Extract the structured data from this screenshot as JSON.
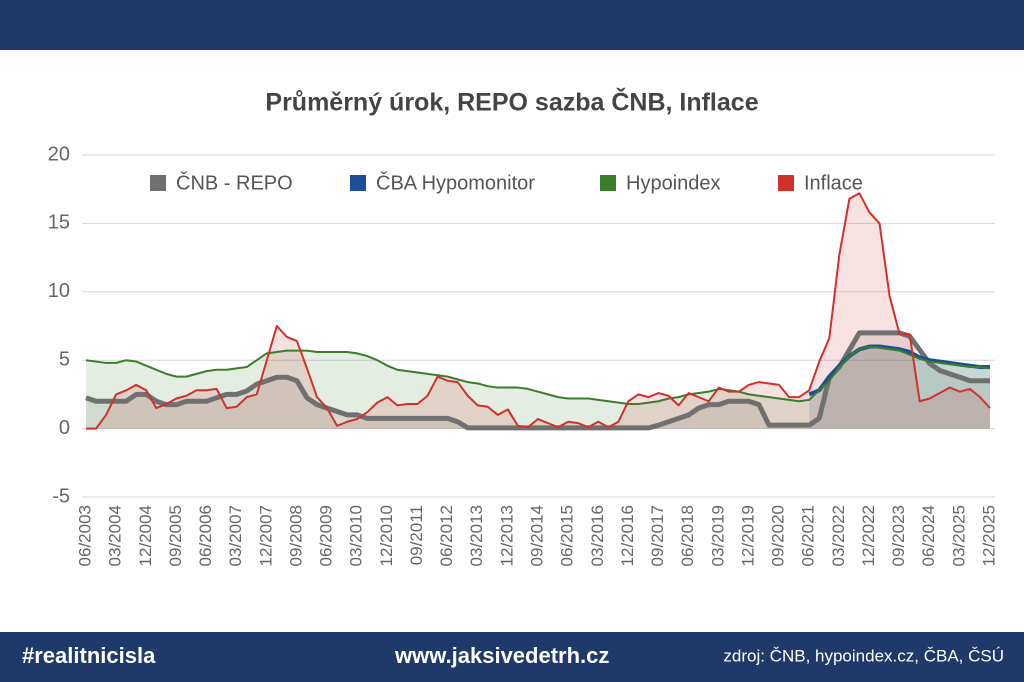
{
  "chart_data": {
    "type": "line",
    "title": "Průměrný úrok, REPO sazba ČNB, Inflace",
    "categories": [
      "06/2003",
      null,
      null,
      "03/2004",
      null,
      null,
      "12/2004",
      null,
      null,
      "09/2005",
      null,
      null,
      "06/2006",
      null,
      null,
      "03/2007",
      null,
      null,
      "12/2007",
      null,
      null,
      "09/2008",
      null,
      null,
      "06/2009",
      null,
      null,
      "03/2010",
      null,
      null,
      "12/2010",
      null,
      null,
      "09/2011",
      null,
      null,
      "06/2012",
      null,
      null,
      "03/2013",
      null,
      null,
      "12/2013",
      null,
      null,
      "09/2014",
      null,
      null,
      "06/2015",
      null,
      null,
      "03/2016",
      null,
      null,
      "12/2016",
      null,
      null,
      "09/2017",
      null,
      null,
      "06/2018",
      null,
      null,
      "03/2019",
      null,
      null,
      "12/2019",
      null,
      null,
      "09/2020",
      null,
      null,
      "06/2021",
      null,
      null,
      "03/2022",
      null,
      null,
      "12/2022",
      null,
      null,
      "09/2023",
      null,
      null,
      "06/2024",
      null,
      null,
      "03/2025",
      null,
      null,
      "12/2025"
    ],
    "series": [
      {
        "name": "ČNB - REPO",
        "color": "#707070",
        "values": [
          2.25,
          2,
          2,
          2,
          2,
          2.5,
          2.5,
          2,
          1.75,
          1.75,
          2,
          2,
          2,
          2.25,
          2.5,
          2.5,
          2.75,
          3.25,
          3.5,
          3.75,
          3.75,
          3.5,
          2.25,
          1.75,
          1.5,
          1.25,
          1,
          1,
          0.75,
          0.75,
          0.75,
          0.75,
          0.75,
          0.75,
          0.75,
          0.75,
          0.75,
          0.5,
          0.05,
          0.05,
          0.05,
          0.05,
          0.05,
          0.05,
          0.05,
          0.05,
          0.05,
          0.05,
          0.05,
          0.05,
          0.05,
          0.05,
          0.05,
          0.05,
          0.05,
          0.05,
          0.05,
          0.25,
          0.5,
          0.75,
          1,
          1.5,
          1.75,
          1.75,
          2,
          2,
          2,
          1.75,
          0.25,
          0.25,
          0.25,
          0.25,
          0.25,
          0.75,
          3.75,
          4.5,
          5.75,
          7,
          7,
          7,
          7,
          7,
          6.75,
          5.75,
          4.75,
          4.25,
          4,
          3.75,
          3.5,
          3.5,
          3.5
        ]
      },
      {
        "name": "ČBA Hypomonitor",
        "color": "#1f4e96",
        "values": [
          null,
          null,
          null,
          null,
          null,
          null,
          null,
          null,
          null,
          null,
          null,
          null,
          null,
          null,
          null,
          null,
          null,
          null,
          null,
          null,
          null,
          null,
          null,
          null,
          null,
          null,
          null,
          null,
          null,
          null,
          null,
          null,
          null,
          null,
          null,
          null,
          null,
          null,
          null,
          null,
          null,
          null,
          null,
          null,
          null,
          null,
          null,
          null,
          null,
          null,
          null,
          null,
          null,
          null,
          null,
          null,
          null,
          null,
          null,
          null,
          null,
          null,
          null,
          null,
          null,
          null,
          null,
          null,
          null,
          null,
          null,
          null,
          2.5,
          2.8,
          3.8,
          4.6,
          5.3,
          5.8,
          6.0,
          6.0,
          5.9,
          5.8,
          5.6,
          5.2,
          5.0,
          4.9,
          4.8,
          4.7,
          4.6,
          4.5,
          4.5
        ]
      },
      {
        "name": "Hypoindex",
        "color": "#3a7d2c",
        "values": [
          5.0,
          4.9,
          4.8,
          4.8,
          5.0,
          4.9,
          4.6,
          4.3,
          4.0,
          3.8,
          3.8,
          4.0,
          4.2,
          4.3,
          4.3,
          4.4,
          4.5,
          5.0,
          5.5,
          5.6,
          5.7,
          5.7,
          5.7,
          5.6,
          5.6,
          5.6,
          5.6,
          5.5,
          5.3,
          5.0,
          4.6,
          4.3,
          4.2,
          4.1,
          4.0,
          3.9,
          3.8,
          3.6,
          3.4,
          3.3,
          3.1,
          3.0,
          3.0,
          3.0,
          2.9,
          2.7,
          2.5,
          2.3,
          2.2,
          2.2,
          2.2,
          2.1,
          2.0,
          1.9,
          1.8,
          1.8,
          1.9,
          2.0,
          2.2,
          2.3,
          2.5,
          2.6,
          2.7,
          2.9,
          2.8,
          2.7,
          2.5,
          2.4,
          2.3,
          2.2,
          2.1,
          2.0,
          2.1,
          2.8,
          3.5,
          4.5,
          5.3,
          5.8,
          6.0,
          5.9,
          5.8,
          5.7,
          5.4,
          5.1,
          4.9,
          4.8,
          4.7,
          4.6,
          4.5,
          4.5,
          4.4
        ]
      },
      {
        "name": "Inflace",
        "color": "#d0312d",
        "values": [
          0.0,
          0.0,
          1.0,
          2.5,
          2.8,
          3.2,
          2.8,
          1.5,
          1.8,
          2.2,
          2.4,
          2.8,
          2.8,
          2.9,
          1.5,
          1.6,
          2.3,
          2.5,
          5.0,
          7.5,
          6.7,
          6.4,
          4.4,
          2.3,
          1.5,
          0.2,
          0.5,
          0.7,
          1.2,
          1.9,
          2.3,
          1.7,
          1.8,
          1.8,
          2.4,
          3.8,
          3.5,
          3.4,
          2.4,
          1.7,
          1.6,
          1.0,
          1.4,
          0.2,
          0.1,
          0.7,
          0.4,
          0.1,
          0.5,
          0.4,
          0.1,
          0.5,
          0.1,
          0.5,
          2.0,
          2.5,
          2.3,
          2.6,
          2.4,
          1.7,
          2.6,
          2.3,
          2.0,
          3.0,
          2.7,
          2.7,
          3.2,
          3.4,
          3.3,
          3.2,
          2.3,
          2.3,
          2.8,
          4.9,
          6.6,
          12.7,
          16.8,
          17.2,
          15.8,
          15.0,
          9.7,
          6.9,
          6.9,
          2.0,
          2.2,
          2.6,
          3.0,
          2.7,
          2.9,
          2.3,
          1.5
        ]
      }
    ],
    "ylim": [
      -5,
      20
    ],
    "yticks": [
      -5,
      0,
      5,
      10,
      15,
      20
    ],
    "grid": true,
    "legend": "top"
  },
  "footer": {
    "hashtag": "#realitnicisla",
    "website": "www.jaksivedetrh.cz",
    "source": "zdroj: ČNB, hypoindex.cz, ČBA, ČSÚ"
  }
}
